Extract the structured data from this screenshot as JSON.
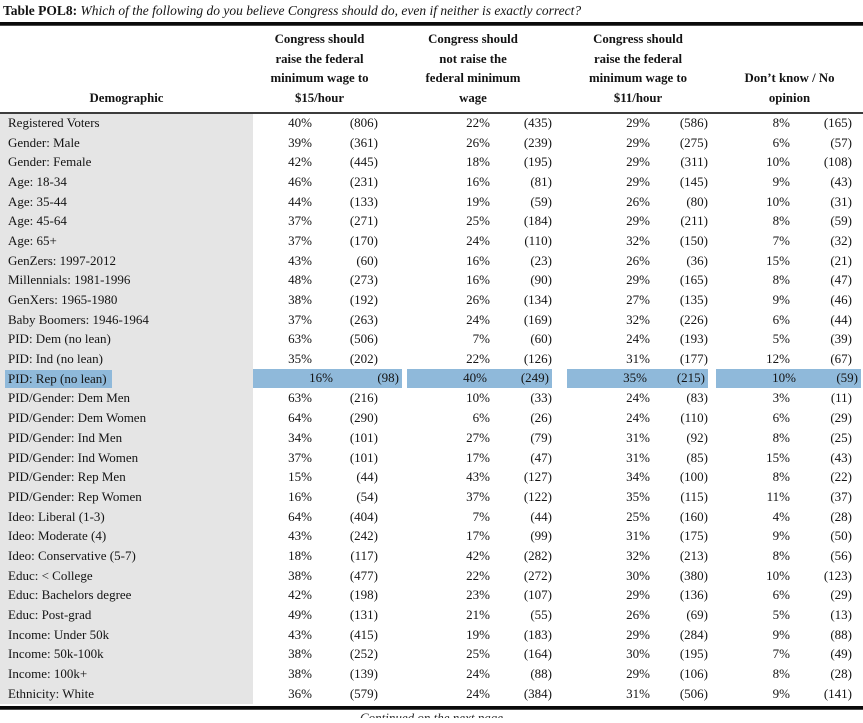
{
  "title": {
    "label": "Table POL8:",
    "question": "Which of the following do you believe Congress should do, even if neither is exactly correct?"
  },
  "colors": {
    "highlight": "#8fb9da",
    "demographic_column_bg": "#e5e5e5"
  },
  "footer": {
    "continued": "Continued on the next page"
  },
  "table": {
    "demographic_header": "Demographic",
    "column_groups": [
      {
        "label": "Congress should\nraise the federal\nminimum wage to\n$15/hour"
      },
      {
        "label": "Congress should\nnot raise the\nfederal minimum\nwage"
      },
      {
        "label": "Congress should\nraise the federal\nminimum wage to\n$11/hour"
      },
      {
        "label": "Don’t know / No\nopinion"
      }
    ],
    "rows": [
      {
        "demographic": "Registered Voters",
        "highlighted": false,
        "values": [
          {
            "pct": "40%",
            "n": "(806)"
          },
          {
            "pct": "22%",
            "n": "(435)"
          },
          {
            "pct": "29%",
            "n": "(586)"
          },
          {
            "pct": "8%",
            "n": "(165)"
          }
        ]
      },
      {
        "demographic": "Gender: Male",
        "highlighted": false,
        "values": [
          {
            "pct": "39%",
            "n": "(361)"
          },
          {
            "pct": "26%",
            "n": "(239)"
          },
          {
            "pct": "29%",
            "n": "(275)"
          },
          {
            "pct": "6%",
            "n": "(57)"
          }
        ]
      },
      {
        "demographic": "Gender: Female",
        "highlighted": false,
        "values": [
          {
            "pct": "42%",
            "n": "(445)"
          },
          {
            "pct": "18%",
            "n": "(195)"
          },
          {
            "pct": "29%",
            "n": "(311)"
          },
          {
            "pct": "10%",
            "n": "(108)"
          }
        ]
      },
      {
        "demographic": "Age: 18-34",
        "highlighted": false,
        "values": [
          {
            "pct": "46%",
            "n": "(231)"
          },
          {
            "pct": "16%",
            "n": "(81)"
          },
          {
            "pct": "29%",
            "n": "(145)"
          },
          {
            "pct": "9%",
            "n": "(43)"
          }
        ]
      },
      {
        "demographic": "Age: 35-44",
        "highlighted": false,
        "values": [
          {
            "pct": "44%",
            "n": "(133)"
          },
          {
            "pct": "19%",
            "n": "(59)"
          },
          {
            "pct": "26%",
            "n": "(80)"
          },
          {
            "pct": "10%",
            "n": "(31)"
          }
        ]
      },
      {
        "demographic": "Age: 45-64",
        "highlighted": false,
        "values": [
          {
            "pct": "37%",
            "n": "(271)"
          },
          {
            "pct": "25%",
            "n": "(184)"
          },
          {
            "pct": "29%",
            "n": "(211)"
          },
          {
            "pct": "8%",
            "n": "(59)"
          }
        ]
      },
      {
        "demographic": "Age: 65+",
        "highlighted": false,
        "values": [
          {
            "pct": "37%",
            "n": "(170)"
          },
          {
            "pct": "24%",
            "n": "(110)"
          },
          {
            "pct": "32%",
            "n": "(150)"
          },
          {
            "pct": "7%",
            "n": "(32)"
          }
        ]
      },
      {
        "demographic": "GenZers: 1997-2012",
        "highlighted": false,
        "values": [
          {
            "pct": "43%",
            "n": "(60)"
          },
          {
            "pct": "16%",
            "n": "(23)"
          },
          {
            "pct": "26%",
            "n": "(36)"
          },
          {
            "pct": "15%",
            "n": "(21)"
          }
        ]
      },
      {
        "demographic": "Millennials: 1981-1996",
        "highlighted": false,
        "values": [
          {
            "pct": "48%",
            "n": "(273)"
          },
          {
            "pct": "16%",
            "n": "(90)"
          },
          {
            "pct": "29%",
            "n": "(165)"
          },
          {
            "pct": "8%",
            "n": "(47)"
          }
        ]
      },
      {
        "demographic": "GenXers: 1965-1980",
        "highlighted": false,
        "values": [
          {
            "pct": "38%",
            "n": "(192)"
          },
          {
            "pct": "26%",
            "n": "(134)"
          },
          {
            "pct": "27%",
            "n": "(135)"
          },
          {
            "pct": "9%",
            "n": "(46)"
          }
        ]
      },
      {
        "demographic": "Baby Boomers: 1946-1964",
        "highlighted": false,
        "values": [
          {
            "pct": "37%",
            "n": "(263)"
          },
          {
            "pct": "24%",
            "n": "(169)"
          },
          {
            "pct": "32%",
            "n": "(226)"
          },
          {
            "pct": "6%",
            "n": "(44)"
          }
        ]
      },
      {
        "demographic": "PID: Dem (no lean)",
        "highlighted": false,
        "values": [
          {
            "pct": "63%",
            "n": "(506)"
          },
          {
            "pct": "7%",
            "n": "(60)"
          },
          {
            "pct": "24%",
            "n": "(193)"
          },
          {
            "pct": "5%",
            "n": "(39)"
          }
        ]
      },
      {
        "demographic": "PID: Ind (no lean)",
        "highlighted": false,
        "values": [
          {
            "pct": "35%",
            "n": "(202)"
          },
          {
            "pct": "22%",
            "n": "(126)"
          },
          {
            "pct": "31%",
            "n": "(177)"
          },
          {
            "pct": "12%",
            "n": "(67)"
          }
        ]
      },
      {
        "demographic": "PID: Rep (no lean)",
        "highlighted": true,
        "values": [
          {
            "pct": "16%",
            "n": "(98)"
          },
          {
            "pct": "40%",
            "n": "(249)"
          },
          {
            "pct": "35%",
            "n": "(215)"
          },
          {
            "pct": "10%",
            "n": "(59)"
          }
        ]
      },
      {
        "demographic": "PID/Gender: Dem Men",
        "highlighted": false,
        "values": [
          {
            "pct": "63%",
            "n": "(216)"
          },
          {
            "pct": "10%",
            "n": "(33)"
          },
          {
            "pct": "24%",
            "n": "(83)"
          },
          {
            "pct": "3%",
            "n": "(11)"
          }
        ]
      },
      {
        "demographic": "PID/Gender: Dem Women",
        "highlighted": false,
        "values": [
          {
            "pct": "64%",
            "n": "(290)"
          },
          {
            "pct": "6%",
            "n": "(26)"
          },
          {
            "pct": "24%",
            "n": "(110)"
          },
          {
            "pct": "6%",
            "n": "(29)"
          }
        ]
      },
      {
        "demographic": "PID/Gender: Ind Men",
        "highlighted": false,
        "values": [
          {
            "pct": "34%",
            "n": "(101)"
          },
          {
            "pct": "27%",
            "n": "(79)"
          },
          {
            "pct": "31%",
            "n": "(92)"
          },
          {
            "pct": "8%",
            "n": "(25)"
          }
        ]
      },
      {
        "demographic": "PID/Gender: Ind Women",
        "highlighted": false,
        "values": [
          {
            "pct": "37%",
            "n": "(101)"
          },
          {
            "pct": "17%",
            "n": "(47)"
          },
          {
            "pct": "31%",
            "n": "(85)"
          },
          {
            "pct": "15%",
            "n": "(43)"
          }
        ]
      },
      {
        "demographic": "PID/Gender: Rep Men",
        "highlighted": false,
        "values": [
          {
            "pct": "15%",
            "n": "(44)"
          },
          {
            "pct": "43%",
            "n": "(127)"
          },
          {
            "pct": "34%",
            "n": "(100)"
          },
          {
            "pct": "8%",
            "n": "(22)"
          }
        ]
      },
      {
        "demographic": "PID/Gender: Rep Women",
        "highlighted": false,
        "values": [
          {
            "pct": "16%",
            "n": "(54)"
          },
          {
            "pct": "37%",
            "n": "(122)"
          },
          {
            "pct": "35%",
            "n": "(115)"
          },
          {
            "pct": "11%",
            "n": "(37)"
          }
        ]
      },
      {
        "demographic": "Ideo: Liberal (1-3)",
        "highlighted": false,
        "values": [
          {
            "pct": "64%",
            "n": "(404)"
          },
          {
            "pct": "7%",
            "n": "(44)"
          },
          {
            "pct": "25%",
            "n": "(160)"
          },
          {
            "pct": "4%",
            "n": "(28)"
          }
        ]
      },
      {
        "demographic": "Ideo: Moderate (4)",
        "highlighted": false,
        "values": [
          {
            "pct": "43%",
            "n": "(242)"
          },
          {
            "pct": "17%",
            "n": "(99)"
          },
          {
            "pct": "31%",
            "n": "(175)"
          },
          {
            "pct": "9%",
            "n": "(50)"
          }
        ]
      },
      {
        "demographic": "Ideo: Conservative (5-7)",
        "highlighted": false,
        "values": [
          {
            "pct": "18%",
            "n": "(117)"
          },
          {
            "pct": "42%",
            "n": "(282)"
          },
          {
            "pct": "32%",
            "n": "(213)"
          },
          {
            "pct": "8%",
            "n": "(56)"
          }
        ]
      },
      {
        "demographic": "Educ: < College",
        "highlighted": false,
        "values": [
          {
            "pct": "38%",
            "n": "(477)"
          },
          {
            "pct": "22%",
            "n": "(272)"
          },
          {
            "pct": "30%",
            "n": "(380)"
          },
          {
            "pct": "10%",
            "n": "(123)"
          }
        ]
      },
      {
        "demographic": "Educ: Bachelors degree",
        "highlighted": false,
        "values": [
          {
            "pct": "42%",
            "n": "(198)"
          },
          {
            "pct": "23%",
            "n": "(107)"
          },
          {
            "pct": "29%",
            "n": "(136)"
          },
          {
            "pct": "6%",
            "n": "(29)"
          }
        ]
      },
      {
        "demographic": "Educ: Post-grad",
        "highlighted": false,
        "values": [
          {
            "pct": "49%",
            "n": "(131)"
          },
          {
            "pct": "21%",
            "n": "(55)"
          },
          {
            "pct": "26%",
            "n": "(69)"
          },
          {
            "pct": "5%",
            "n": "(13)"
          }
        ]
      },
      {
        "demographic": "Income: Under 50k",
        "highlighted": false,
        "values": [
          {
            "pct": "43%",
            "n": "(415)"
          },
          {
            "pct": "19%",
            "n": "(183)"
          },
          {
            "pct": "29%",
            "n": "(284)"
          },
          {
            "pct": "9%",
            "n": "(88)"
          }
        ]
      },
      {
        "demographic": "Income: 50k-100k",
        "highlighted": false,
        "values": [
          {
            "pct": "38%",
            "n": "(252)"
          },
          {
            "pct": "25%",
            "n": "(164)"
          },
          {
            "pct": "30%",
            "n": "(195)"
          },
          {
            "pct": "7%",
            "n": "(49)"
          }
        ]
      },
      {
        "demographic": "Income: 100k+",
        "highlighted": false,
        "values": [
          {
            "pct": "38%",
            "n": "(139)"
          },
          {
            "pct": "24%",
            "n": "(88)"
          },
          {
            "pct": "29%",
            "n": "(106)"
          },
          {
            "pct": "8%",
            "n": "(28)"
          }
        ]
      },
      {
        "demographic": "Ethnicity: White",
        "highlighted": false,
        "values": [
          {
            "pct": "36%",
            "n": "(579)"
          },
          {
            "pct": "24%",
            "n": "(384)"
          },
          {
            "pct": "31%",
            "n": "(506)"
          },
          {
            "pct": "9%",
            "n": "(141)"
          }
        ]
      }
    ]
  }
}
